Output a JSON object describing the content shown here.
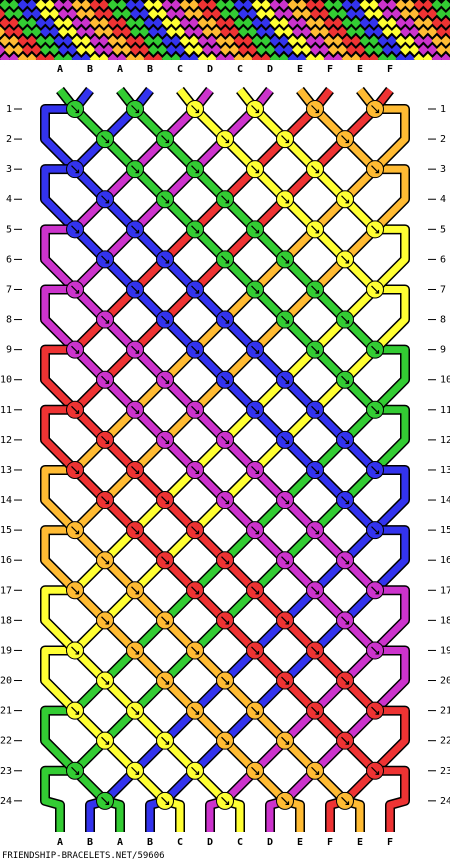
{
  "strand_letters_top": [
    "A",
    "B",
    "A",
    "B",
    "C",
    "D",
    "C",
    "D",
    "E",
    "F",
    "E",
    "F"
  ],
  "strand_letters_bottom": [
    "A",
    "B",
    "A",
    "B",
    "C",
    "D",
    "C",
    "D",
    "E",
    "F",
    "E",
    "F"
  ],
  "strand_colors": {
    "A": "#33cc33",
    "B": "#3333ee",
    "C": "#ffff33",
    "D": "#cc33cc",
    "E": "#ffbb33",
    "F": "#ee3333"
  },
  "row_numbers": [
    "1",
    "2",
    "3",
    "4",
    "5",
    "6",
    "7",
    "8",
    "9",
    "10",
    "11",
    "12",
    "13",
    "14",
    "15",
    "16",
    "17",
    "18",
    "19",
    "20",
    "21",
    "22",
    "23",
    "24"
  ],
  "knot_type": "forward (↘)",
  "footer_text": "FRIENDSHIP-BRACELETS.NET/59606"
}
